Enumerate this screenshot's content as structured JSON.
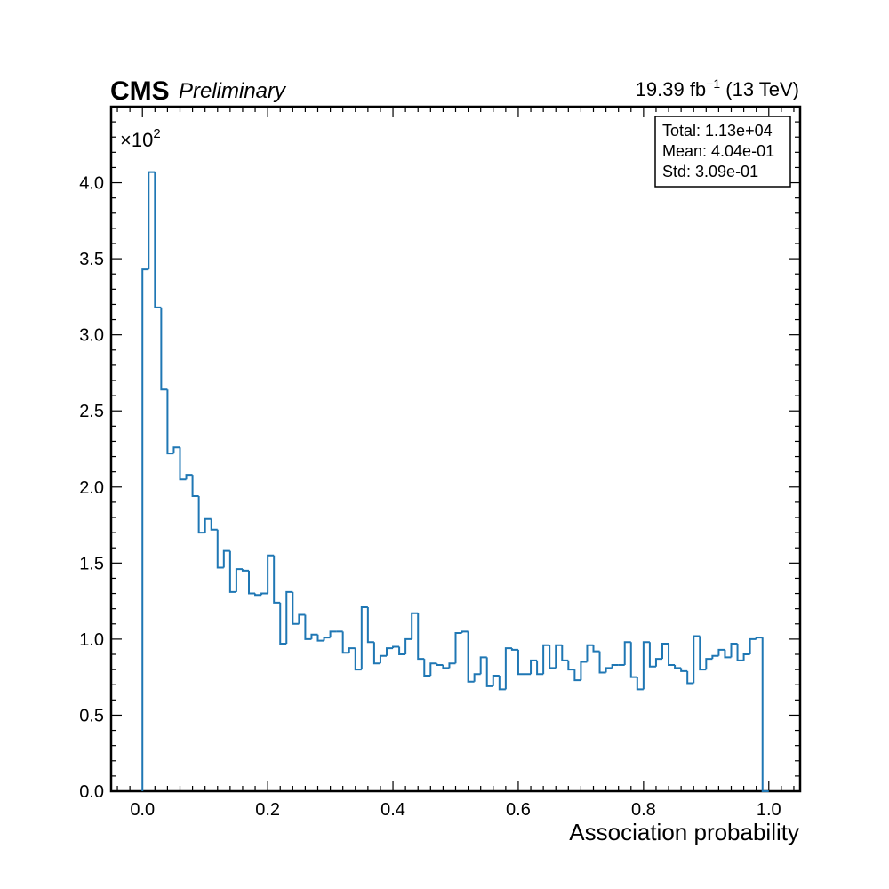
{
  "header": {
    "experiment": "CMS",
    "status": "Preliminary",
    "lumi_value": "19.39 fb",
    "lumi_exponent": "−1",
    "energy": " (13 TeV)"
  },
  "stats_box": {
    "total": "Total: 1.13e+04",
    "mean": "Mean: 4.04e-01",
    "std": "Std: 3.09e-01"
  },
  "y_multiplier": {
    "base": "×10",
    "exponent": "2"
  },
  "chart_data": {
    "type": "histogram",
    "histtype": "step",
    "xlabel": "Association probability",
    "ylabel": "",
    "xlim": [
      -0.05,
      1.05
    ],
    "ylim": [
      0,
      4.5
    ],
    "y_scale_note": "values in units of 10^2",
    "x_ticks": [
      0.0,
      0.2,
      0.4,
      0.6,
      0.8,
      1.0
    ],
    "x_tick_labels": [
      "0.0",
      "0.2",
      "0.4",
      "0.6",
      "0.8",
      "1.0"
    ],
    "y_ticks": [
      0.0,
      0.5,
      1.0,
      1.5,
      2.0,
      2.5,
      3.0,
      3.5,
      4.0
    ],
    "y_tick_labels": [
      "0.0",
      "0.5",
      "1.0",
      "1.5",
      "2.0",
      "2.5",
      "3.0",
      "3.5",
      "4.0"
    ],
    "bin_range": [
      0.0,
      1.0
    ],
    "n_bins": 100,
    "color": "#1f77b4",
    "values": [
      3.43,
      4.07,
      3.18,
      2.64,
      2.22,
      2.26,
      2.05,
      2.08,
      1.94,
      1.7,
      1.79,
      1.72,
      1.47,
      1.58,
      1.31,
      1.46,
      1.45,
      1.3,
      1.29,
      1.3,
      1.55,
      1.24,
      0.97,
      1.31,
      1.1,
      1.16,
      1.0,
      1.03,
      0.99,
      1.01,
      1.05,
      1.05,
      0.91,
      0.94,
      0.8,
      1.21,
      0.98,
      0.84,
      0.89,
      0.94,
      0.95,
      0.9,
      1.0,
      1.17,
      0.87,
      0.76,
      0.84,
      0.83,
      0.81,
      0.84,
      1.04,
      1.05,
      0.72,
      0.77,
      0.88,
      0.69,
      0.76,
      0.67,
      0.94,
      0.93,
      0.77,
      0.77,
      0.86,
      0.77,
      0.96,
      0.81,
      0.96,
      0.86,
      0.8,
      0.73,
      0.85,
      0.96,
      0.92,
      0.78,
      0.81,
      0.83,
      0.83,
      0.98,
      0.75,
      0.67,
      0.98,
      0.82,
      0.87,
      0.97,
      0.83,
      0.81,
      0.79,
      0.71,
      1.02,
      0.8,
      0.87,
      0.89,
      0.93,
      0.88,
      0.97,
      0.86,
      0.9,
      1.0,
      1.01,
      0.0
    ]
  }
}
